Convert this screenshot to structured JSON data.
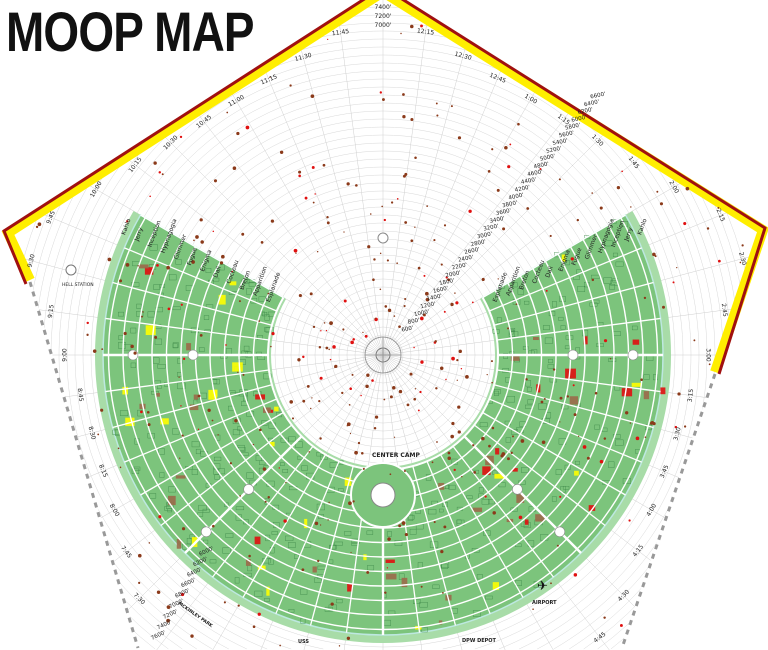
{
  "title": "MOOP MAP",
  "colors": {
    "city_green": "#7cc47c",
    "city_light": "#a8dca8",
    "block_line": "#3f8a4a",
    "street": "#ffffff",
    "moop_low": "#ffff00",
    "moop_high": "#e01010",
    "moop_dot": "#8b3a1a",
    "perimeter_yellow": "#ffee00",
    "perimeter_red": "#a01010",
    "grid": "#d8d8d8"
  },
  "ring_streets": [
    "Esplanade",
    "Apparition",
    "Breton",
    "Cocteau",
    "Dali",
    "Enigma",
    "Fugue",
    "Glimmer",
    "Hypnagogia",
    "Inception",
    "Jerry",
    "Kahlo"
  ],
  "clock_labels": [
    "7:30",
    "7:45",
    "8:00",
    "8:15",
    "8:30",
    "8:45",
    "9:00",
    "9:15",
    "9:30",
    "9:45",
    "10:00",
    "10:15",
    "10:30",
    "10:45",
    "11:00",
    "11:15",
    "11:30",
    "11:45",
    "12:15",
    "12:30",
    "12:45",
    "1:00",
    "1:15",
    "1:30",
    "1:45",
    "2:00",
    "2:15",
    "2:30",
    "2:45",
    "3:00",
    "3:15",
    "3:30",
    "3:45",
    "4:00",
    "4:15",
    "4:30",
    "4:45"
  ],
  "distance_labels": [
    "600'",
    "800'",
    "1000'",
    "1200'",
    "1400'",
    "1600'",
    "1800'",
    "2000'",
    "2200'",
    "2400'",
    "2600'",
    "2800'",
    "3000'",
    "3200'",
    "3400'",
    "3600'",
    "3800'",
    "4000'",
    "4200'",
    "4400'",
    "4600'",
    "4800'",
    "5000'",
    "5200'",
    "5400'",
    "5600'",
    "5800'",
    "6000'",
    "6200'",
    "6400'",
    "6600'"
  ],
  "top_distance_labels": [
    "7400'",
    "7200'",
    "7000'"
  ],
  "lower_distance_labels": [
    "6000'",
    "6200'",
    "6400'",
    "6600'",
    "6800'",
    "7000'",
    "7200'",
    "7400'",
    "7600'"
  ],
  "places": {
    "hell_station": "HELL STATION",
    "center_camp": "CENTER CAMP",
    "airport": "AIRPORT",
    "dpw_depot": "DPW DEPOT",
    "mckinley_park": "MCKINLEY PARK",
    "uss": "USS"
  },
  "icons": {
    "airport": "airplane-icon",
    "hell_station": "fuel-station-icon",
    "man": "man-circle-icon"
  }
}
